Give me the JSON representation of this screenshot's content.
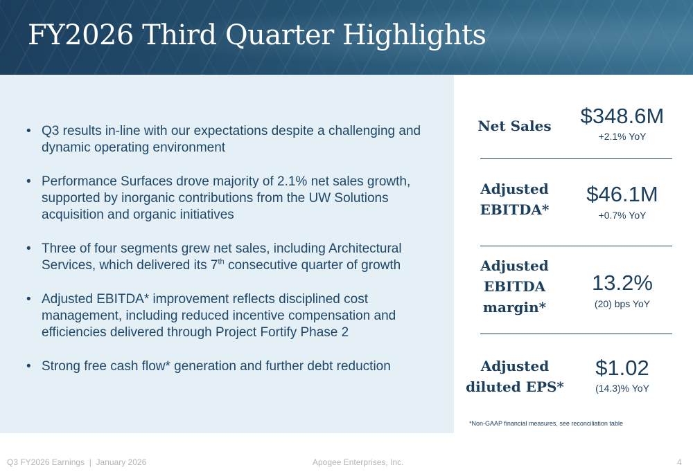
{
  "header": {
    "title": "FY2026 Third Quarter Highlights"
  },
  "bullets": [
    {
      "text": "Q3 results in-line with our expectations despite a challenging and dynamic operating environment"
    },
    {
      "text": "Performance Surfaces drove majority of 2.1% net sales growth, supported by inorganic contributions from the UW Solutions acquisition and organic initiatives"
    },
    {
      "text_before": "Three of four segments grew net sales, including Architectural Services, which delivered its 7",
      "sup": "th",
      "text_after": " consecutive quarter of growth"
    },
    {
      "text": "Adjusted EBITDA* improvement reflects disciplined cost management, including reduced incentive compensation and efficiencies delivered through Project Fortify Phase 2"
    },
    {
      "text": "Strong free cash flow* generation and further debt reduction"
    }
  ],
  "metrics": [
    {
      "label_lines": [
        "Net Sales"
      ],
      "value": "$348.6M",
      "delta": "+2.1% YoY"
    },
    {
      "label_lines": [
        "Adjusted",
        "EBITDA*"
      ],
      "value": "$46.1M",
      "delta": "+0.7% YoY"
    },
    {
      "label_lines": [
        "Adjusted",
        "EBITDA",
        "margin*"
      ],
      "value": "13.2%",
      "delta": "(20) bps YoY"
    },
    {
      "label_lines": [
        "Adjusted",
        "diluted EPS*"
      ],
      "value": "$1.02",
      "delta": "(14.3)% YoY"
    }
  ],
  "footnote": "*Non-GAAP financial measures, see reconciliation table",
  "footer": {
    "left": "Q3 FY2026 Earnings  |  January 2026",
    "center": "Apogee Enterprises, Inc.",
    "page": "4"
  },
  "colors": {
    "brand_navy": "#1c3e5d",
    "panel_bg": "#e5f0f6",
    "footer_gray": "#b4b4b4"
  }
}
